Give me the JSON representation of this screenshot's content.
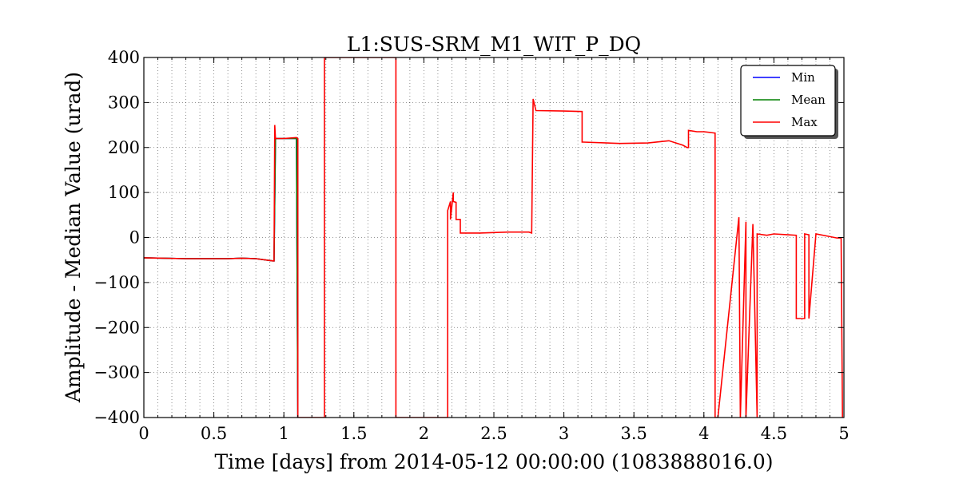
{
  "chart_data": {
    "type": "line",
    "title": "L1:SUS-SRM_M1_WIT_P_DQ",
    "xlabel": "Time [days] from 2014-05-12 00:00:00 (1083888016.0)",
    "ylabel": "Amplitude - Median Value (urad)",
    "xlim": [
      0,
      5
    ],
    "ylim": [
      -400,
      400
    ],
    "xticks": [
      0,
      0.5,
      1,
      1.5,
      2,
      2.5,
      3,
      3.5,
      4,
      4.5,
      5
    ],
    "xtick_labels": [
      "0",
      "0.5",
      "1",
      "1.5",
      "2",
      "2.5",
      "3",
      "3.5",
      "4",
      "4.5",
      "5"
    ],
    "yticks": [
      -400,
      -300,
      -200,
      -100,
      0,
      100,
      200,
      300,
      400
    ],
    "ytick_labels": [
      "−400",
      "−300",
      "−200",
      "−100",
      "0",
      "100",
      "200",
      "300",
      "400"
    ],
    "grid": true,
    "legend_position": "top-right",
    "series": [
      {
        "name": "Min",
        "color": "#0000ff",
        "x": [
          0,
          0.3,
          0.6,
          0.7,
          0.8,
          0.92,
          0.93,
          0.94,
          1.0,
          1.09,
          1.1
        ],
        "y": [
          -45,
          -47,
          -47,
          -46,
          -47,
          -52,
          -52,
          220,
          220,
          220,
          -400
        ]
      },
      {
        "name": "Mean",
        "color": "#008000",
        "x": [
          0,
          0.3,
          0.6,
          0.7,
          0.8,
          0.92,
          0.93,
          0.94,
          1.0,
          1.09,
          1.1
        ],
        "y": [
          -45,
          -47,
          -47,
          -46,
          -47,
          -52,
          -52,
          220,
          220,
          220,
          -400
        ]
      },
      {
        "name": "Max",
        "color": "#ff0000",
        "x": [
          0,
          0.3,
          0.6,
          0.7,
          0.8,
          0.92,
          0.93,
          0.935,
          0.94,
          1.0,
          1.09,
          1.1,
          1.1,
          1.29,
          1.29,
          1.8,
          1.8,
          2.17,
          2.17,
          2.19,
          2.19,
          2.21,
          2.21,
          2.23,
          2.23,
          2.26,
          2.26,
          2.27,
          2.4,
          2.6,
          2.75,
          2.77,
          2.78,
          2.8,
          3.0,
          3.13,
          3.13,
          3.14,
          3.4,
          3.6,
          3.75,
          3.85,
          3.88,
          3.89,
          3.89,
          3.95,
          4.0,
          4.08,
          4.08,
          4.1,
          4.25,
          4.26,
          4.3,
          4.3,
          4.35,
          4.38,
          4.38,
          4.45,
          4.5,
          4.6,
          4.66,
          4.66,
          4.72,
          4.72,
          4.75,
          4.75,
          4.8,
          4.9,
          4.95,
          4.98,
          4.99
        ],
        "y": [
          -45,
          -47,
          -47,
          -46,
          -47,
          -52,
          -52,
          250,
          220,
          220,
          222,
          220,
          -400,
          -400,
          400,
          400,
          -400,
          -400,
          60,
          80,
          40,
          100,
          80,
          78,
          40,
          40,
          10,
          10,
          10,
          12,
          12,
          10,
          308,
          282,
          281,
          280,
          212,
          212,
          209,
          210,
          215,
          205,
          200,
          200,
          238,
          235,
          235,
          232,
          -400,
          -400,
          45,
          -400,
          35,
          -400,
          30,
          -400,
          8,
          5,
          8,
          6,
          5,
          -180,
          -180,
          8,
          6,
          -180,
          8,
          2,
          -1,
          -1,
          -400
        ]
      }
    ]
  }
}
